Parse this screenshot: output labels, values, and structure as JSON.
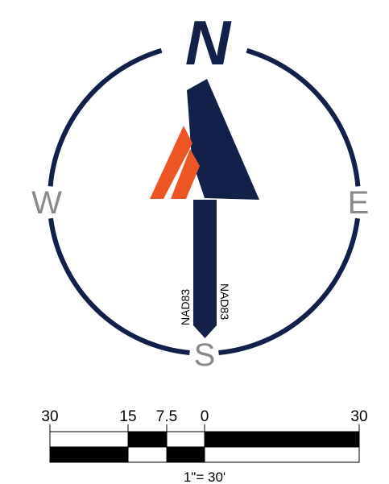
{
  "north_arrow": {
    "north_label": "N",
    "east_label": "E",
    "west_label": "W",
    "south_label": "S",
    "datum_left": "NAD83",
    "datum_right": "NAD83",
    "colors": {
      "navy": "#13204a",
      "orange": "#ee5524",
      "cardinal_gray": "#8a8a8a"
    }
  },
  "scale_bar": {
    "tick_labels": [
      "30",
      "15",
      "7.5",
      "0",
      "30"
    ],
    "ratio_label": "1\"= 30'",
    "units": "feet"
  }
}
